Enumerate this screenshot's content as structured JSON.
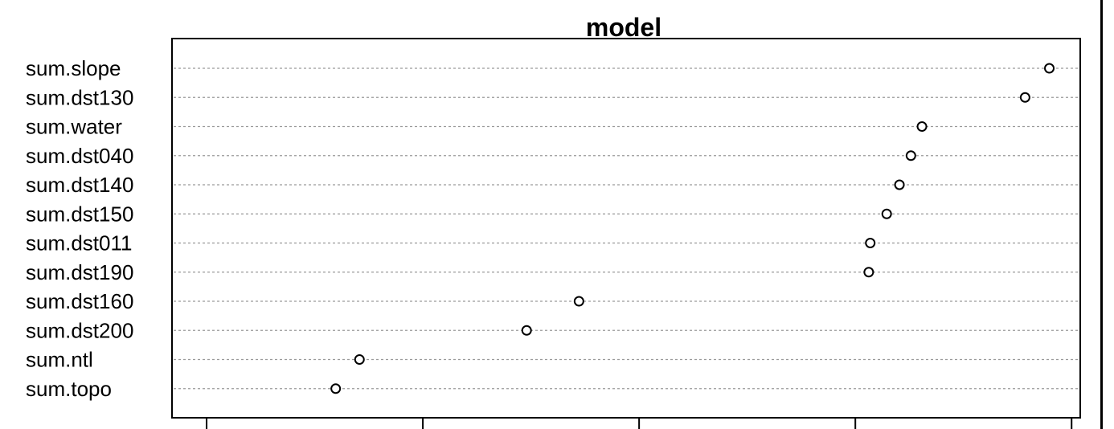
{
  "chart_data": {
    "type": "scatter",
    "subtype": "dotchart",
    "title": "model",
    "xlabel": "",
    "ylabel": "",
    "grid": true,
    "categories": [
      "sum.slope",
      "sum.dst130",
      "sum.water",
      "sum.dst040",
      "sum.dst140",
      "sum.dst150",
      "sum.dst011",
      "sum.dst190",
      "sum.dst160",
      "sum.dst200",
      "sum.ntl",
      "sum.topo"
    ],
    "values": [
      38.97,
      37.85,
      33.08,
      32.57,
      32.04,
      31.45,
      30.69,
      30.62,
      17.22,
      14.8,
      7.07,
      5.97
    ],
    "xlim": [
      -1.6,
      40.4
    ],
    "xticks": [
      0,
      10,
      20,
      30,
      40
    ],
    "xtick_labels_visible": false
  }
}
